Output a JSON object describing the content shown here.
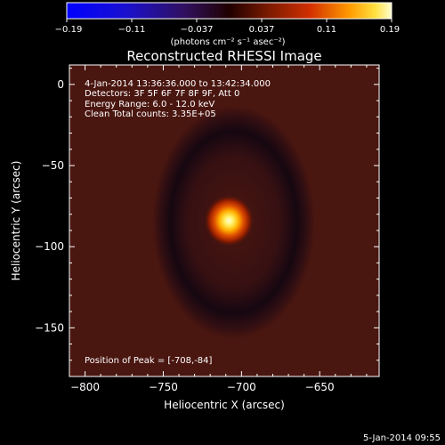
{
  "chart_data": {
    "type": "heatmap",
    "title": "Reconstructed RHESSI Image",
    "xlabel": "Heliocentric X (arcsec)",
    "ylabel": "Heliocentric Y (arcsec)",
    "xlim": [
      -810,
      -612
    ],
    "ylim": [
      -180,
      12
    ],
    "x_ticks": [
      -800,
      -750,
      -700,
      -650
    ],
    "y_ticks": [
      0,
      -50,
      -100,
      -150
    ],
    "colorbar": {
      "range": [
        -0.19,
        0.19
      ],
      "ticks": [
        "-0.19",
        "-0.11",
        "-0.037",
        "0.037",
        "0.11",
        "0.19"
      ],
      "unit_label": "(photons cm⁻² s⁻¹ asec⁻²)"
    },
    "annotations": [
      " 4-Jan-2014 13:36:36.000 to 13:42:34.000",
      "Detectors: 3F 5F 6F 7F 8F 9F, Att 0",
      "Energy Range: 6.0 - 12.0 keV",
      "Clean    Total counts: 3.35E+05"
    ],
    "peak": {
      "x": -708,
      "y": -84,
      "value": 0.19
    },
    "peak_label": "Position of Peak = [-708,-84]",
    "ring": {
      "center_x": -705,
      "center_y": -85,
      "radius_x": 52,
      "radius_y": 72,
      "value": -0.02
    },
    "background_value": 0.02
  },
  "footer": {
    "timestamp": "5-Jan-2014 09:55"
  }
}
